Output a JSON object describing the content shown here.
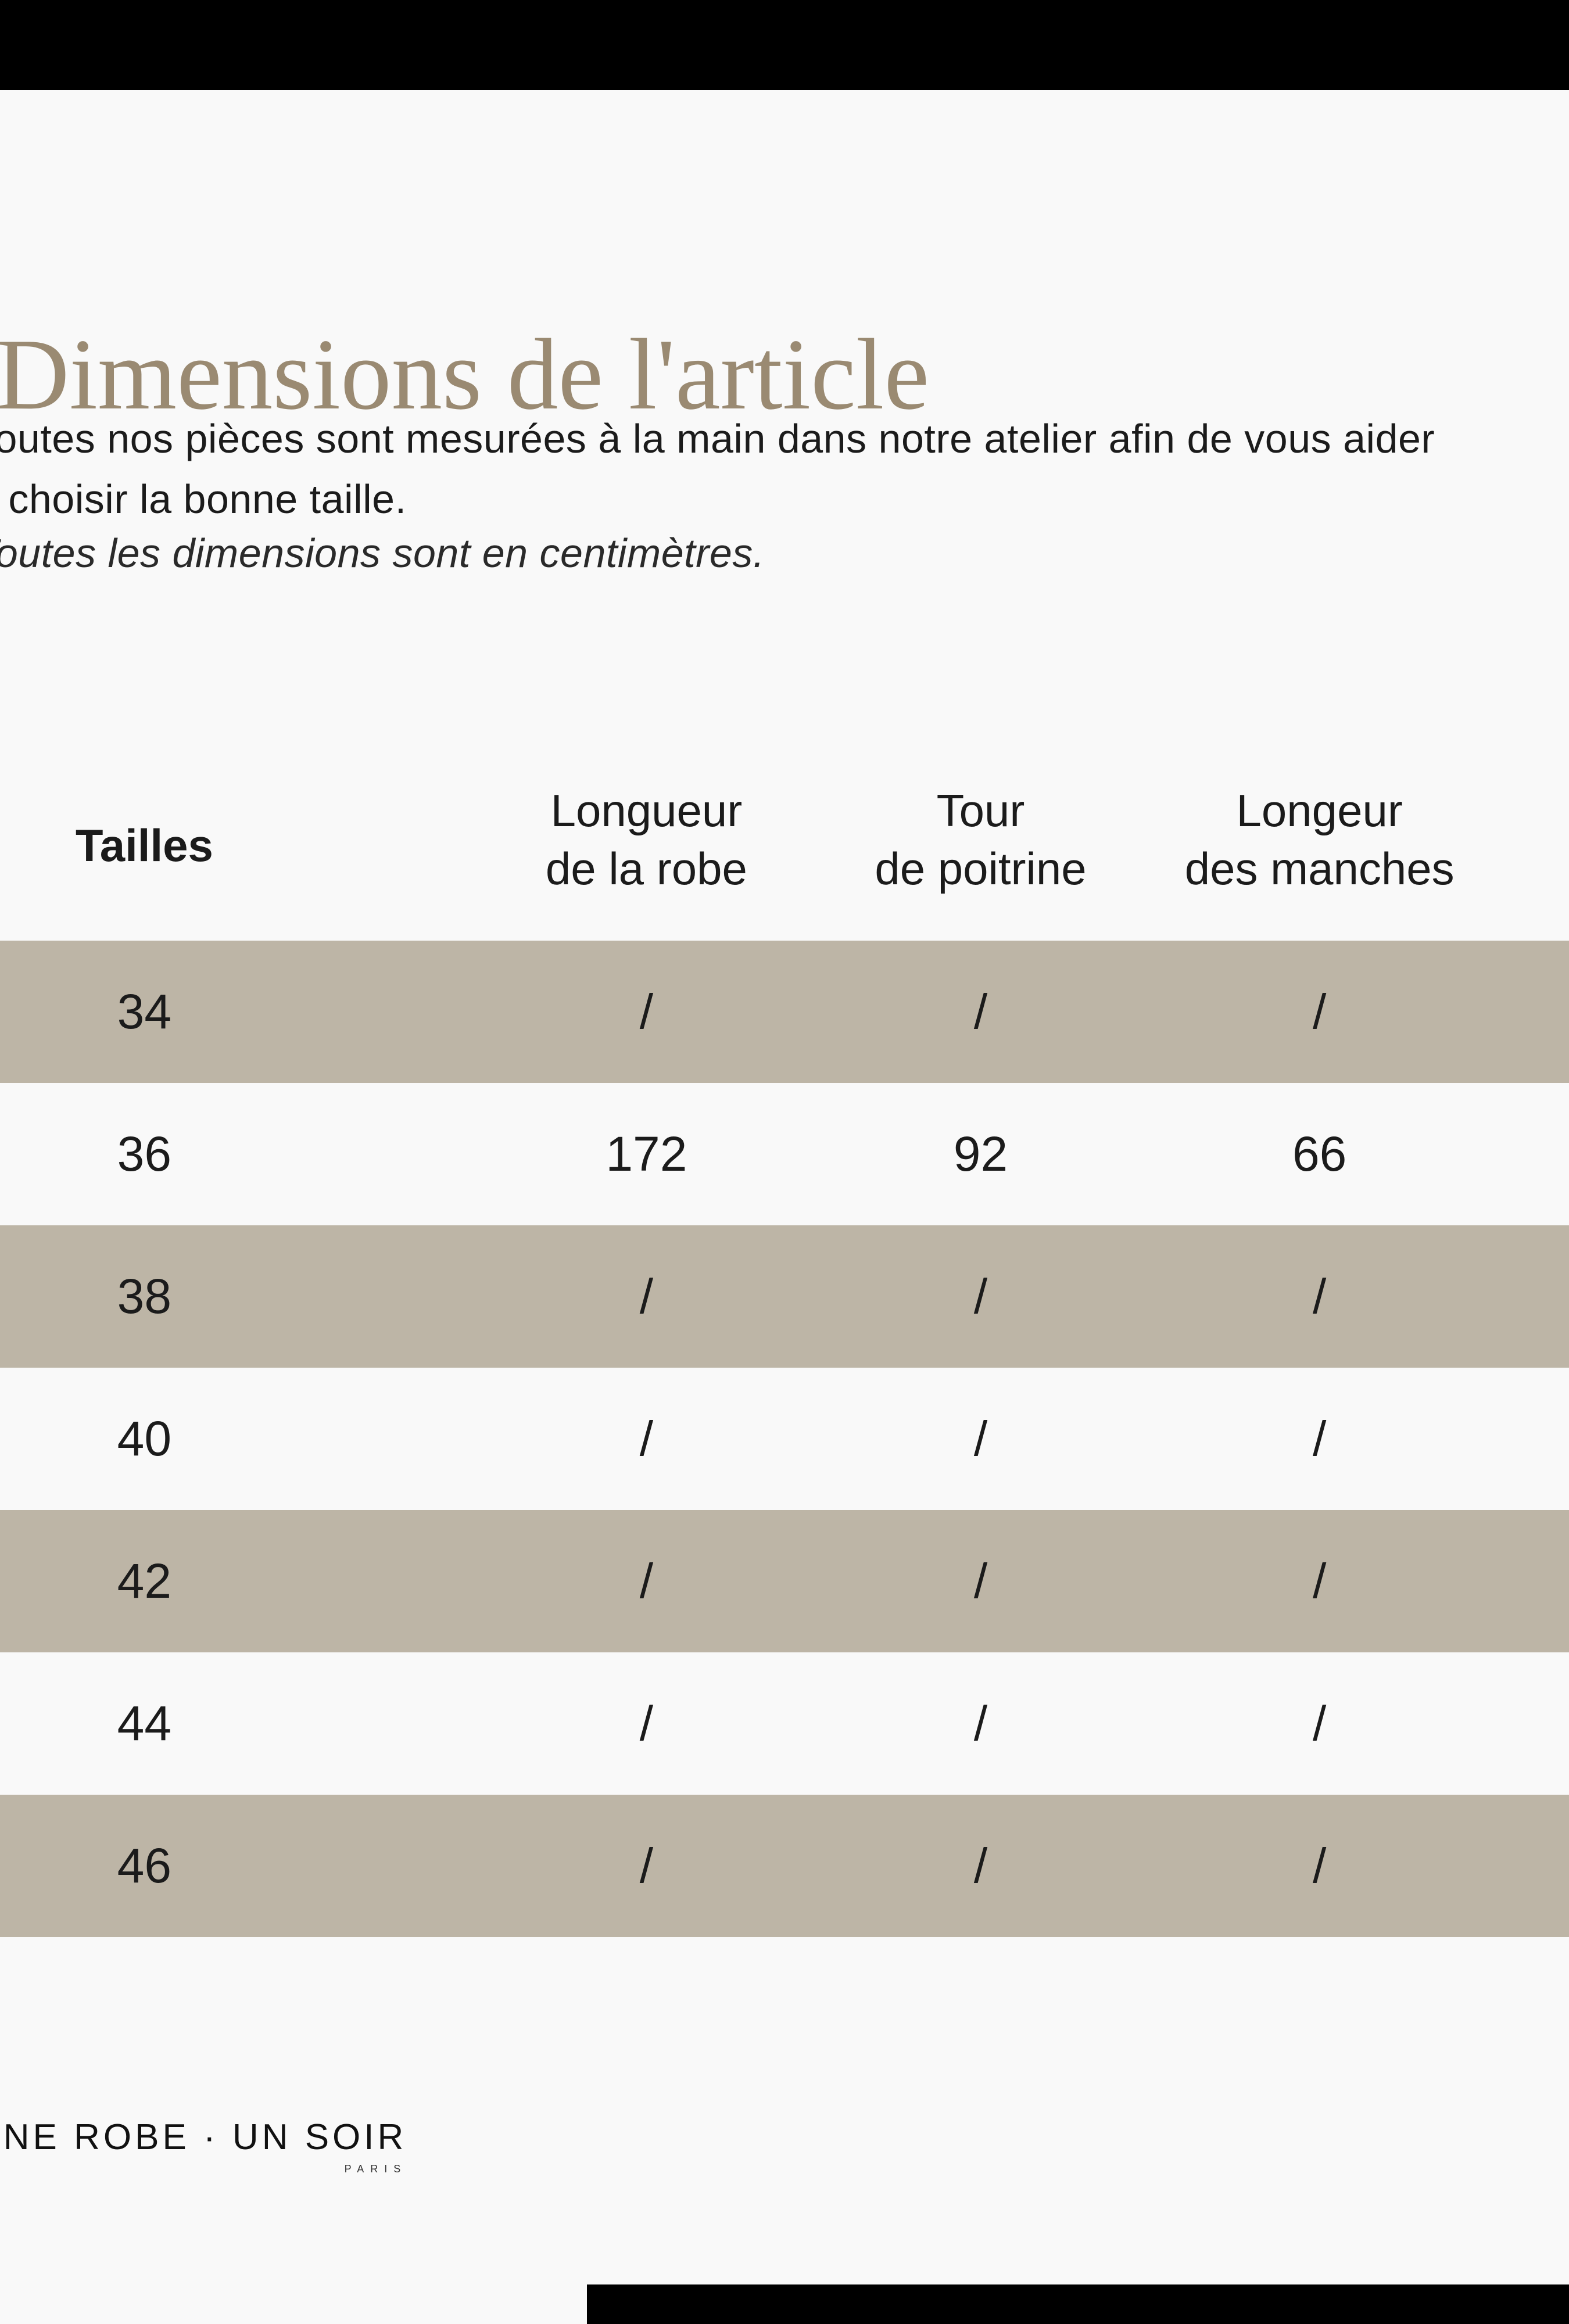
{
  "page": {
    "background_color": "#f9f9f9",
    "edge_bar_color": "#000000",
    "accent_color": "#9a8a72",
    "row_highlight_color": "#bdb5a6"
  },
  "title": {
    "text": "Dimensions de l'article"
  },
  "intro": {
    "line1": "Toutes nos pièces sont mesurées à la main dans notre atelier afin de vous aider",
    "line2": "à choisir la bonne taille.",
    "note": "Toutes les dimensions sont en centimètres."
  },
  "size_table": {
    "unit": "centimètres",
    "columns": [
      {
        "label": "Tailles",
        "label2": ""
      },
      {
        "label": "Longueur",
        "label2": "de la robe"
      },
      {
        "label": "Tour",
        "label2": "de poitrine"
      },
      {
        "label": "Longeur",
        "label2": "des manches"
      }
    ],
    "rows": [
      {
        "size": "34",
        "dress_length": "/",
        "chest": "/",
        "sleeves": "/"
      },
      {
        "size": "36",
        "dress_length": "172",
        "chest": "92",
        "sleeves": "66"
      },
      {
        "size": "38",
        "dress_length": "/",
        "chest": "/",
        "sleeves": "/"
      },
      {
        "size": "40",
        "dress_length": "/",
        "chest": "/",
        "sleeves": "/"
      },
      {
        "size": "42",
        "dress_length": "/",
        "chest": "/",
        "sleeves": "/"
      },
      {
        "size": "44",
        "dress_length": "/",
        "chest": "/",
        "sleeves": "/"
      },
      {
        "size": "46",
        "dress_length": "/",
        "chest": "/",
        "sleeves": "/"
      }
    ]
  },
  "footer": {
    "brand": "UNE ROBE · UN SOIR",
    "city": "PARIS"
  }
}
